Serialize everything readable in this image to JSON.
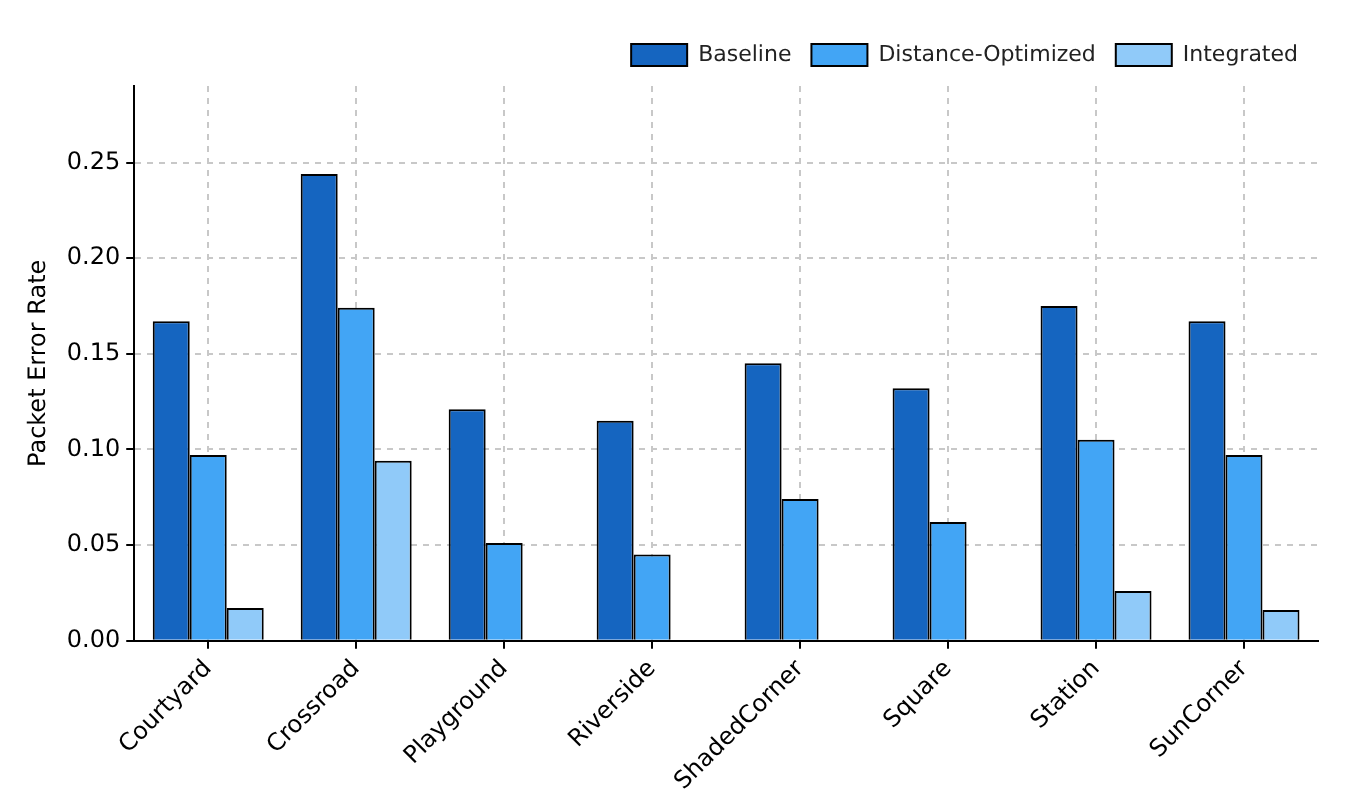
{
  "chart_data": {
    "type": "bar",
    "ylabel": "Packet Error Rate",
    "categories": [
      "Courtyard",
      "Crossroad",
      "Playground",
      "Riverside",
      "ShadedCorner",
      "Square",
      "Station",
      "SunCorner"
    ],
    "series": [
      {
        "name": "Baseline",
        "color": "#1565c0",
        "values": [
          0.167,
          0.244,
          0.121,
          0.115,
          0.145,
          0.132,
          0.175,
          0.167
        ]
      },
      {
        "name": "Distance-Optimized",
        "color": "#42a5f5",
        "values": [
          0.097,
          0.174,
          0.051,
          0.045,
          0.074,
          0.062,
          0.105,
          0.097
        ]
      },
      {
        "name": "Integrated",
        "color": "#90caf9",
        "values": [
          0.017,
          0.094,
          0,
          0,
          0,
          0,
          0.026,
          0.016
        ]
      }
    ],
    "ylim": [
      0,
      0.29
    ],
    "yticks": [
      {
        "value": 0,
        "label": "0.00"
      },
      {
        "value": 0.05,
        "label": "0.05"
      },
      {
        "value": 0.1,
        "label": "0.10"
      },
      {
        "value": 0.15,
        "label": "0.15"
      },
      {
        "value": 0.2,
        "label": "0.20"
      },
      {
        "value": 0.25,
        "label": "0.25"
      }
    ],
    "grid": true,
    "legend": "top right"
  }
}
